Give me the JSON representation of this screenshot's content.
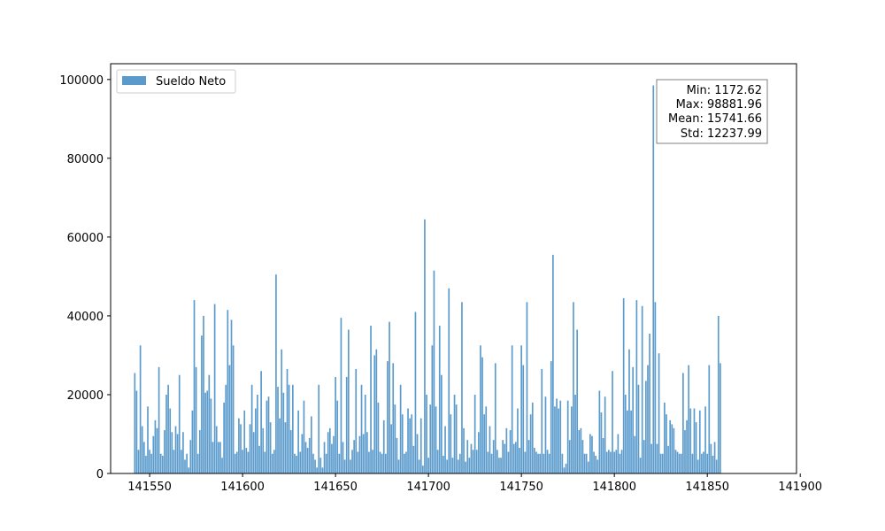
{
  "chart_data": {
    "type": "bar",
    "title": "",
    "xlabel": "",
    "ylabel": "",
    "xlim": [
      141529,
      141898
    ],
    "ylim": [
      0,
      104000
    ],
    "x_ticks": [
      141550,
      141600,
      141650,
      141700,
      141750,
      141800,
      141850,
      141900
    ],
    "y_ticks": [
      0,
      20000,
      40000,
      60000,
      80000,
      100000
    ],
    "x_tick_labels": [
      "141550",
      "141600",
      "141650",
      "141700",
      "141750",
      "141800",
      "141850",
      "141900"
    ],
    "y_tick_labels": [
      "0",
      "20000",
      "40000",
      "60000",
      "80000",
      "100000"
    ],
    "grid": false,
    "legend_position": "upper left",
    "series": [
      {
        "name": "Sueldo Neto",
        "color": "#5b9bcc",
        "x_start": 141542,
        "x_step": 1,
        "values": [
          25500,
          21000,
          6000,
          32500,
          12000,
          8000,
          4500,
          17000,
          6000,
          5000,
          9500,
          13500,
          11500,
          27000,
          5000,
          4500,
          11000,
          20000,
          22500,
          16500,
          10500,
          6000,
          12000,
          10000,
          25000,
          6000,
          10500,
          3500,
          5000,
          1500,
          8500,
          16000,
          44000,
          27000,
          5000,
          11000,
          35000,
          40000,
          20500,
          21000,
          25000,
          19000,
          8000,
          43000,
          12000,
          8000,
          8000,
          4000,
          18000,
          22500,
          41500,
          27500,
          39000,
          32500,
          5000,
          5500,
          14000,
          12500,
          6000,
          16000,
          6500,
          5500,
          12500,
          22500,
          10500,
          16500,
          20000,
          7000,
          26000,
          11500,
          5500,
          18500,
          19500,
          13000,
          5000,
          6000,
          50500,
          22000,
          14000,
          31500,
          20500,
          13000,
          26500,
          22500,
          11000,
          22500,
          5000,
          4500,
          16000,
          5500,
          10000,
          18500,
          8000,
          6500,
          9000,
          14500,
          5000,
          3500,
          1500,
          22500,
          4000,
          1500,
          8000,
          5000,
          10500,
          11500,
          7500,
          9500,
          24500,
          18500,
          5000,
          39500,
          8000,
          3500,
          24500,
          36500,
          3500,
          6000,
          8500,
          26500,
          5500,
          9500,
          22500,
          10000,
          20000,
          10500,
          5500,
          37500,
          6000,
          30000,
          31500,
          18000,
          5500,
          5000,
          13500,
          5000,
          28500,
          38500,
          12500,
          28000,
          17500,
          9000,
          3500,
          22500,
          15000,
          5000,
          5500,
          16500,
          14000,
          15000,
          7000,
          41000,
          10000,
          3500,
          14000,
          2000,
          64500,
          20000,
          4000,
          17500,
          32500,
          51500,
          17000,
          6000,
          37500,
          25000,
          4500,
          12000,
          3500,
          47000,
          15000,
          4000,
          20000,
          17500,
          3500,
          5000,
          43500,
          11500,
          3000,
          8500,
          4000,
          7500,
          6000,
          20000,
          6000,
          10500,
          32500,
          29500,
          15000,
          17000,
          5500,
          12000,
          5000,
          8500,
          28000,
          6000,
          4000,
          4000,
          8500,
          7500,
          11500,
          5500,
          11000,
          32500,
          7500,
          8000,
          16500,
          6500,
          32500,
          27500,
          5500,
          43500,
          8500,
          15000,
          18000,
          6500,
          5500,
          5000,
          5000,
          26500,
          5000,
          19500,
          6000,
          5000,
          28500,
          55500,
          17000,
          19000,
          16500,
          18500,
          5000,
          1500,
          2500,
          18500,
          8500,
          17000,
          43500,
          20000,
          36500,
          11000,
          11500,
          8500,
          5000,
          5000,
          3000,
          10000,
          9500,
          5500,
          4500,
          3500,
          21000,
          15500,
          9000,
          19500,
          5500,
          6000,
          5500,
          26000,
          5500,
          6000,
          10000,
          5000,
          6000,
          44500,
          20000,
          16000,
          31500,
          16000,
          27000,
          9500,
          44000,
          22500,
          4000,
          42500,
          8500,
          23500,
          27500,
          35500,
          7500,
          98500,
          43500,
          7500,
          30500,
          5000,
          5000,
          18000,
          15000,
          7000,
          13500,
          12500,
          11500,
          6000,
          5500,
          5000,
          5000,
          25500,
          11000,
          13500,
          27500,
          16500,
          5000,
          16500,
          13000,
          3500,
          16000,
          5000,
          5500,
          17000,
          5000,
          27500,
          7500,
          4500,
          8000,
          3500,
          40000,
          28000
        ]
      }
    ],
    "stats": {
      "min": "Min: 1172.62",
      "max": "Max: 98881.96",
      "mean": "Mean: 15741.66",
      "std": "Std: 12237.99"
    }
  }
}
